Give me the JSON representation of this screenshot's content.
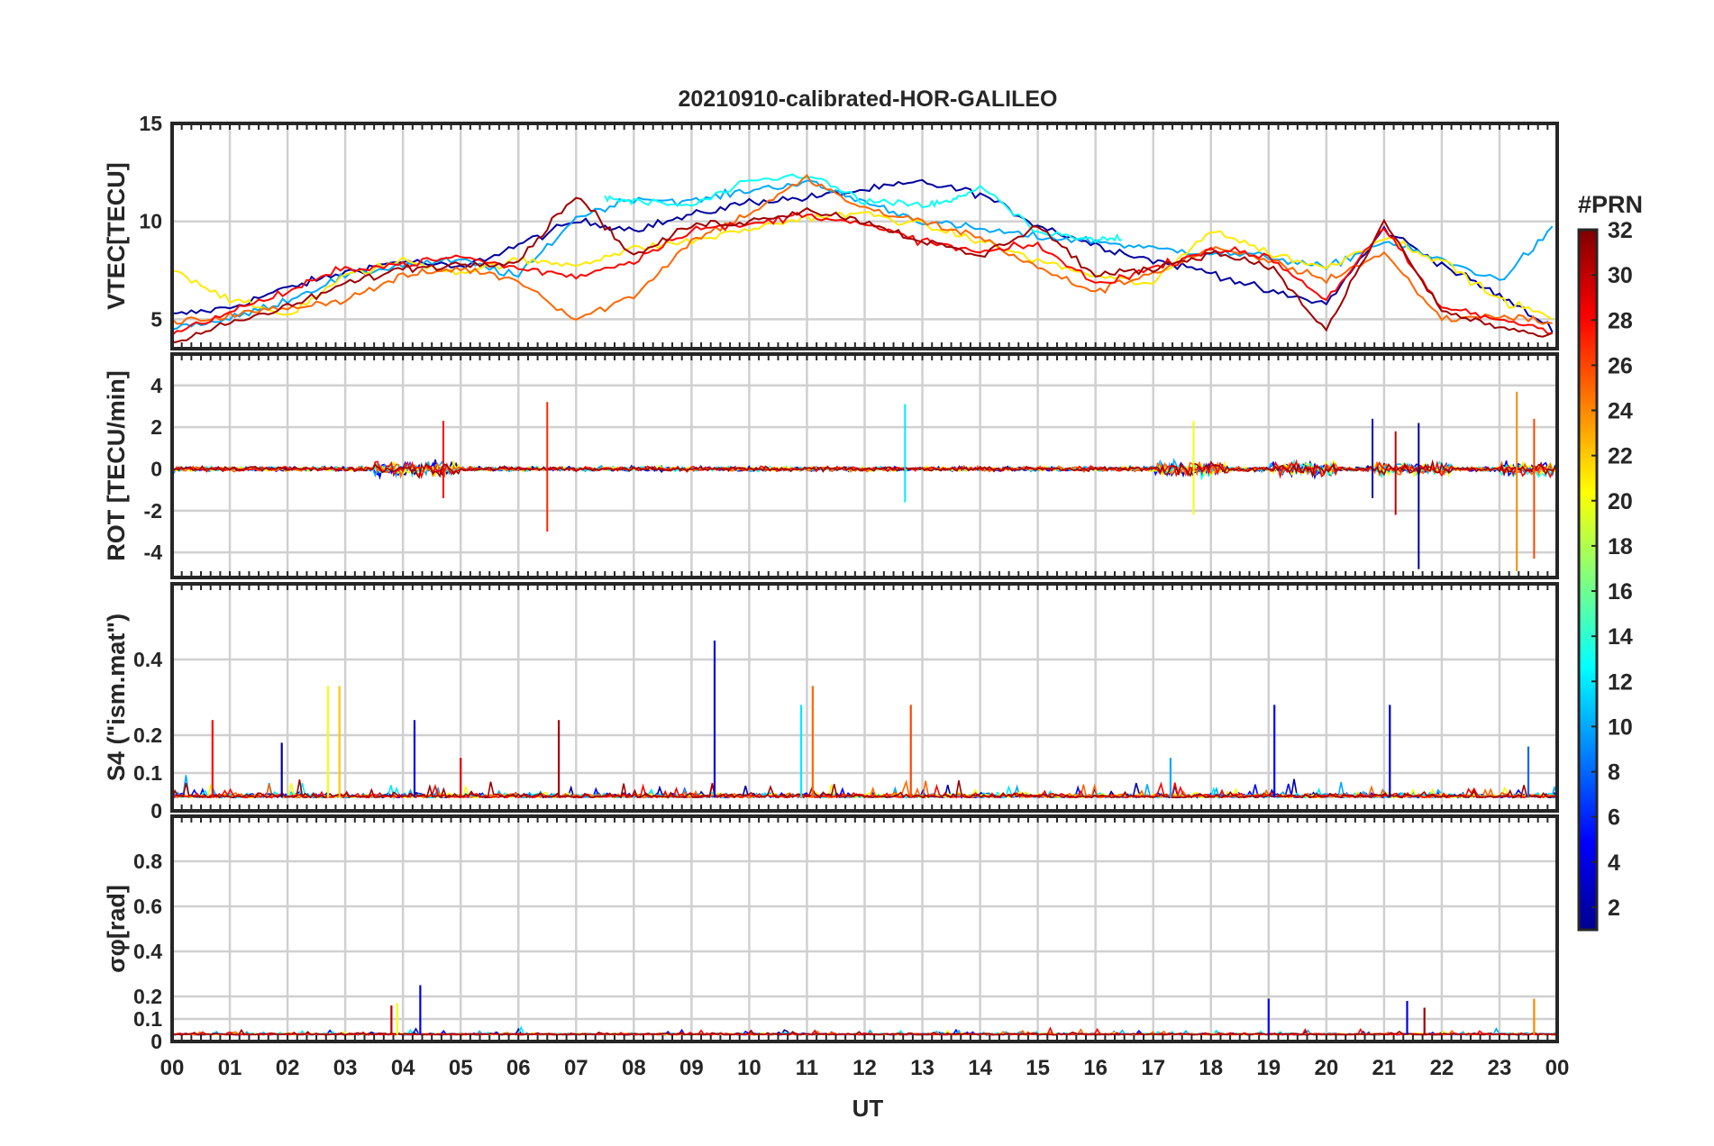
{
  "chart_data": {
    "type": "line",
    "title": "20210910-calibrated-HOR-GALILEO",
    "xlabel": "UT",
    "x_ticks": [
      "00",
      "01",
      "02",
      "03",
      "04",
      "05",
      "06",
      "07",
      "08",
      "09",
      "10",
      "11",
      "12",
      "13",
      "14",
      "15",
      "16",
      "17",
      "18",
      "19",
      "20",
      "21",
      "22",
      "23",
      "00"
    ],
    "xlim": [
      0,
      24
    ],
    "colorbar": {
      "label": "#PRN",
      "range": [
        1,
        32
      ],
      "ticks": [
        "2",
        "4",
        "6",
        "8",
        "10",
        "12",
        "14",
        "16",
        "18",
        "20",
        "22",
        "24",
        "26",
        "28",
        "30",
        "32"
      ]
    },
    "panels": [
      {
        "id": "vtec",
        "ylabel": "VTEC[TECU]",
        "ylim": [
          3.5,
          15
        ],
        "yticks": [
          5,
          10,
          15
        ],
        "ytick_labels": [
          "5",
          "10",
          "15"
        ],
        "series": [
          {
            "prn": 2,
            "x": [
              0,
              1,
              2,
              3,
              4,
              5,
              6,
              7,
              8,
              9,
              10,
              11,
              12,
              13,
              14,
              15,
              16,
              17,
              18,
              19,
              20,
              21,
              22,
              23,
              24
            ],
            "y": [
              5.2,
              5.6,
              6.6,
              7.4,
              8.0,
              7.6,
              8.8,
              10.0,
              9.6,
              10.3,
              11.0,
              11.2,
              11.6,
              12.0,
              11.4,
              9.8,
              8.8,
              8.0,
              7.4,
              6.4,
              5.8,
              9.6,
              7.8,
              6.2,
              4.4
            ]
          },
          {
            "prn": 10,
            "x": [
              0,
              1,
              2,
              3,
              4,
              5,
              6,
              7,
              8,
              9,
              10,
              11,
              12,
              13,
              14,
              15,
              16,
              17,
              18,
              19,
              20,
              21,
              22,
              23,
              24
            ],
            "y": [
              4.6,
              5.0,
              6.0,
              7.2,
              7.8,
              8.0,
              7.2,
              10.2,
              11.2,
              11.0,
              11.6,
              12.0,
              11.0,
              10.0,
              9.6,
              9.2,
              9.0,
              8.6,
              8.4,
              8.2,
              7.6,
              9.0,
              8.0,
              7.0,
              9.8
            ]
          },
          {
            "prn": 13,
            "x": [
              7.5,
              8,
              9,
              10,
              11,
              12,
              13,
              13.5,
              14,
              15,
              16,
              16.5
            ],
            "y": [
              11.2,
              11.0,
              10.8,
              12.0,
              12.4,
              11.0,
              10.8,
              11.0,
              11.8,
              9.4,
              9.0,
              9.2
            ]
          },
          {
            "prn": 21,
            "x": [
              0,
              1,
              2,
              3,
              4,
              5,
              6,
              7,
              8,
              9,
              10,
              11,
              12,
              13,
              14,
              15,
              16,
              17,
              18,
              19,
              20,
              21,
              22,
              23,
              24
            ],
            "y": [
              7.6,
              6.0,
              5.2,
              7.2,
              8.0,
              7.4,
              8.0,
              7.8,
              8.6,
              9.0,
              9.6,
              10.2,
              10.4,
              9.8,
              9.0,
              8.0,
              7.2,
              6.8,
              9.6,
              8.4,
              7.6,
              9.2,
              8.0,
              6.0,
              5.0
            ]
          },
          {
            "prn": 25,
            "x": [
              0,
              1,
              2,
              3,
              4,
              5,
              6,
              7,
              8,
              9,
              10,
              11,
              12,
              13,
              14,
              15,
              16,
              17,
              18,
              19,
              20,
              21,
              22,
              23,
              24
            ],
            "y": [
              4.8,
              5.2,
              5.6,
              6.0,
              7.2,
              7.6,
              7.0,
              5.0,
              6.2,
              9.0,
              10.4,
              12.2,
              10.6,
              10.0,
              9.2,
              7.6,
              6.4,
              7.4,
              8.6,
              8.0,
              7.0,
              8.4,
              5.0,
              5.2,
              4.8
            ]
          },
          {
            "prn": 28,
            "x": [
              0,
              1,
              2,
              3,
              4,
              5,
              6,
              7,
              8,
              9,
              10,
              11,
              12,
              13,
              14,
              15,
              16,
              17,
              18,
              19,
              20,
              21,
              22,
              23,
              24
            ],
            "y": [
              4.2,
              5.4,
              6.4,
              7.6,
              7.8,
              8.2,
              7.6,
              7.2,
              8.0,
              9.6,
              9.8,
              10.4,
              9.8,
              9.0,
              8.4,
              8.8,
              6.8,
              7.6,
              8.6,
              8.2,
              6.0,
              9.6,
              5.6,
              5.0,
              4.4
            ]
          },
          {
            "prn": 31,
            "x": [
              0,
              1,
              2,
              3,
              4,
              5,
              6,
              7,
              8,
              9,
              10,
              11,
              12,
              13,
              14,
              15,
              16,
              17,
              18,
              19,
              20,
              21,
              22,
              23,
              24
            ],
            "y": [
              3.8,
              4.8,
              5.6,
              6.8,
              7.6,
              7.8,
              8.0,
              11.4,
              8.2,
              9.8,
              10.0,
              10.6,
              10.0,
              9.0,
              8.2,
              9.8,
              7.2,
              7.6,
              8.4,
              7.8,
              4.4,
              10.0,
              5.4,
              4.6,
              4.0
            ]
          }
        ]
      },
      {
        "id": "rot",
        "ylabel": "ROT [TECU/min]",
        "ylim": [
          -5.2,
          5.5
        ],
        "yticks": [
          -4,
          -2,
          0,
          2,
          4
        ],
        "ytick_labels": [
          "-4",
          "-2",
          "0",
          "2",
          "4"
        ],
        "spikes": [
          {
            "prn": 27,
            "x": 6.5,
            "low": -3.0,
            "high": 3.2
          },
          {
            "prn": 12,
            "x": 12.7,
            "low": -1.6,
            "high": 3.1
          },
          {
            "prn": 2,
            "x": 21.6,
            "low": -4.8,
            "high": 2.2
          },
          {
            "prn": 24,
            "x": 23.3,
            "low": -4.9,
            "high": 3.7
          },
          {
            "prn": 26,
            "x": 23.6,
            "low": -4.3,
            "high": 2.4
          },
          {
            "prn": 28,
            "x": 4.7,
            "low": -1.4,
            "high": 2.3
          },
          {
            "prn": 20,
            "x": 17.7,
            "low": -2.2,
            "high": 2.3
          },
          {
            "prn": 3,
            "x": 20.8,
            "low": -1.4,
            "high": 2.4
          },
          {
            "prn": 30,
            "x": 21.2,
            "low": -2.2,
            "high": 1.8
          }
        ]
      },
      {
        "id": "s4",
        "ylabel": "S4 (\"ism.mat\")",
        "ylim": [
          0,
          0.6
        ],
        "yticks": [
          0.1,
          0.2,
          0.4
        ],
        "ytick_labels": [
          "0.1",
          "0.2",
          "0.4"
        ],
        "extra_tick_label": "0",
        "spikes": [
          {
            "prn": 4,
            "x": 9.4,
            "value": 0.45
          },
          {
            "prn": 20,
            "x": 2.7,
            "value": 0.33
          },
          {
            "prn": 22,
            "x": 2.9,
            "value": 0.33
          },
          {
            "prn": 25,
            "x": 11.1,
            "value": 0.33
          },
          {
            "prn": 12,
            "x": 10.9,
            "value": 0.28
          },
          {
            "prn": 26,
            "x": 12.8,
            "value": 0.28
          },
          {
            "prn": 5,
            "x": 19.1,
            "value": 0.28
          },
          {
            "prn": 3,
            "x": 21.1,
            "value": 0.28
          },
          {
            "prn": 28,
            "x": 0.7,
            "value": 0.24
          },
          {
            "prn": 4,
            "x": 4.2,
            "value": 0.24
          },
          {
            "prn": 31,
            "x": 6.7,
            "value": 0.24
          },
          {
            "prn": 2,
            "x": 1.9,
            "value": 0.18
          },
          {
            "prn": 29,
            "x": 5.0,
            "value": 0.14
          },
          {
            "prn": 10,
            "x": 17.3,
            "value": 0.14
          },
          {
            "prn": 8,
            "x": 23.5,
            "value": 0.17
          }
        ]
      },
      {
        "id": "sigma",
        "ylabel": "σφ[rad]",
        "ylim": [
          0,
          1.0
        ],
        "yticks": [
          0,
          0.1,
          0.2,
          0.4,
          0.6,
          0.8
        ],
        "ytick_labels": [
          "0",
          "0.1",
          "0.2",
          "0.4",
          "0.6",
          "0.8"
        ],
        "spikes": [
          {
            "prn": 4,
            "x": 4.3,
            "value": 0.25
          },
          {
            "prn": 30,
            "x": 3.8,
            "value": 0.16
          },
          {
            "prn": 20,
            "x": 3.9,
            "value": 0.17
          },
          {
            "prn": 5,
            "x": 19.0,
            "value": 0.19
          },
          {
            "prn": 4,
            "x": 21.4,
            "value": 0.18
          },
          {
            "prn": 24,
            "x": 23.6,
            "value": 0.19
          },
          {
            "prn": 31,
            "x": 21.7,
            "value": 0.15
          }
        ]
      }
    ]
  }
}
